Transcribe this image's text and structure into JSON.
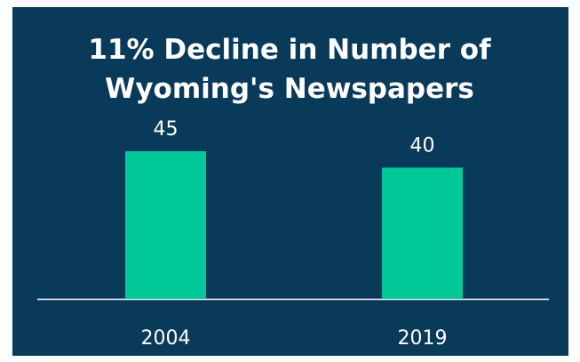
{
  "chart_data": {
    "type": "bar",
    "title": "11% Decline in Number of Wyoming's Newspapers",
    "categories": [
      "2004",
      "2019"
    ],
    "values": [
      45,
      40
    ],
    "color": "#00c896"
  }
}
